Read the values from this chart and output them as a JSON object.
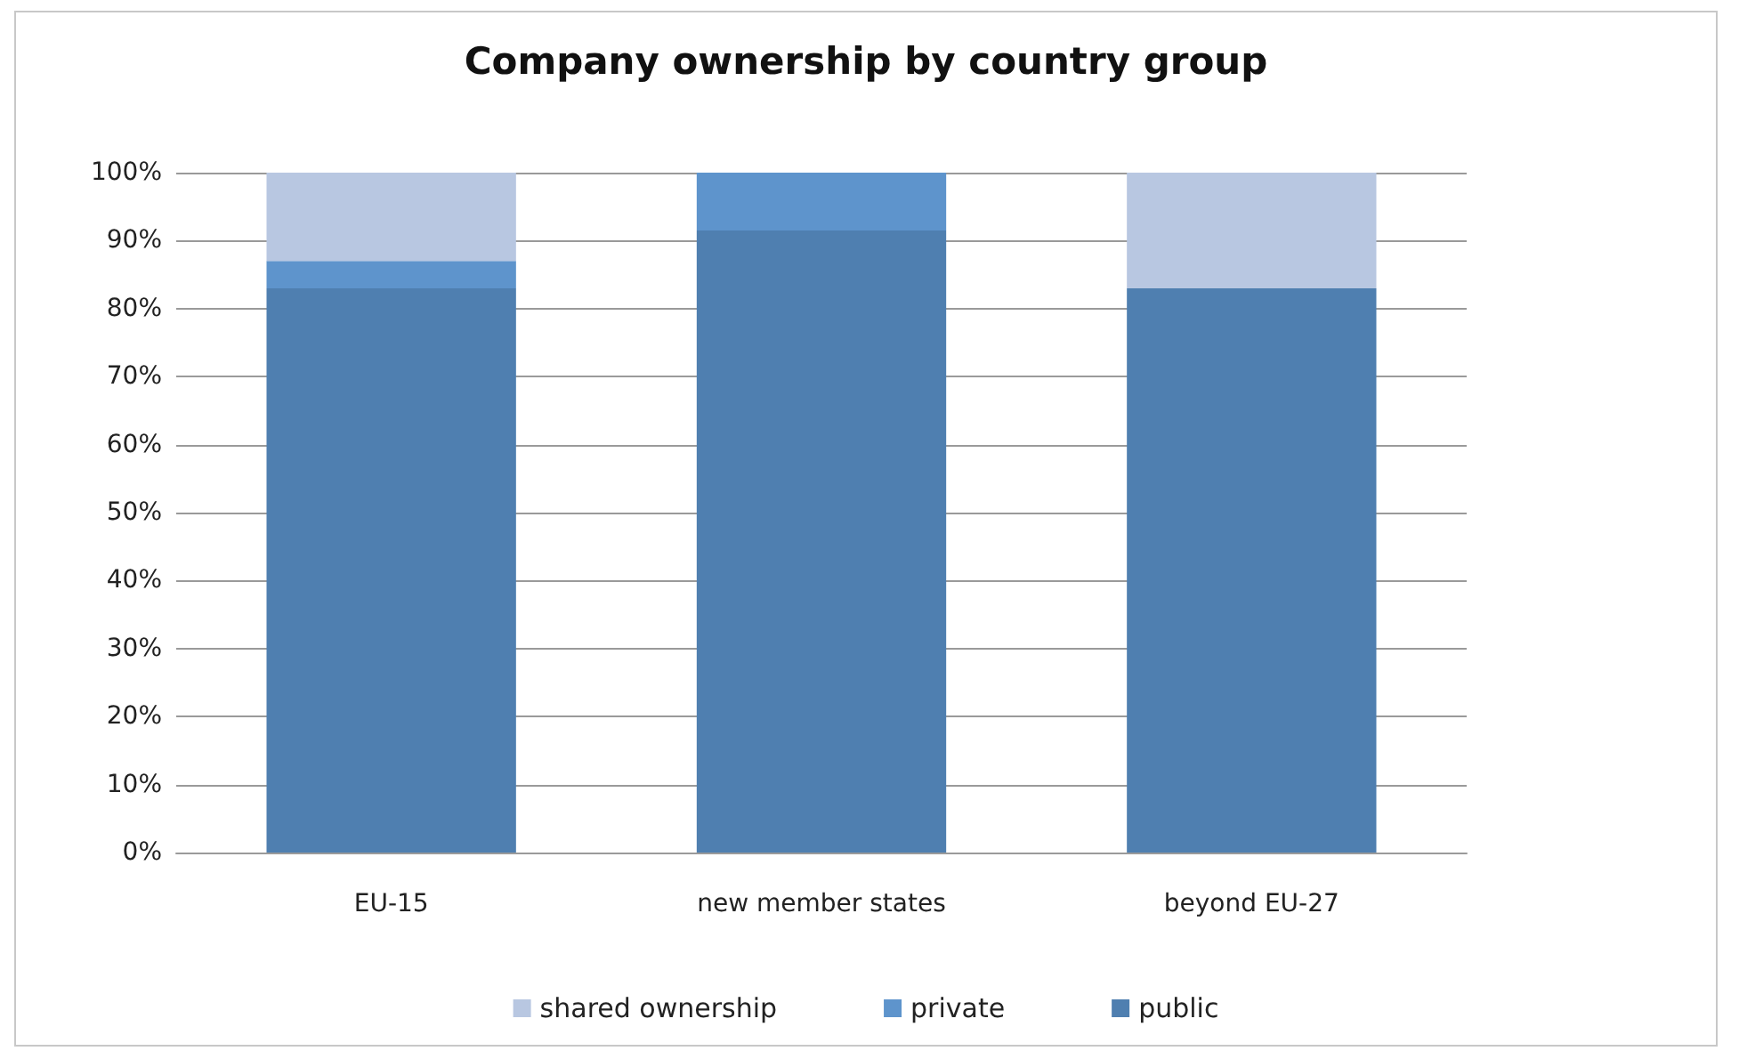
{
  "chart_data": {
    "type": "bar",
    "title": "Company ownership by country group",
    "categories": [
      "EU-15",
      "new member states",
      "beyond EU-27"
    ],
    "stacked": true,
    "series": [
      {
        "name": "public",
        "color": "#4f7fb0",
        "values": [
          83,
          91.5,
          83
        ]
      },
      {
        "name": "private",
        "color": "#5e94cc",
        "values": [
          4,
          8.5,
          0
        ]
      },
      {
        "name": "shared ownership",
        "color": "#b8c7e1",
        "values": [
          13,
          0,
          17
        ]
      }
    ],
    "ylim": [
      0,
      100
    ],
    "yticks": [
      {
        "value": 0,
        "label": "0%"
      },
      {
        "value": 10,
        "label": "10%"
      },
      {
        "value": 20,
        "label": "20%"
      },
      {
        "value": 30,
        "label": "30%"
      },
      {
        "value": 40,
        "label": "40%"
      },
      {
        "value": 50,
        "label": "50%"
      },
      {
        "value": 60,
        "label": "60%"
      },
      {
        "value": 70,
        "label": "70%"
      },
      {
        "value": 80,
        "label": "80%"
      },
      {
        "value": 90,
        "label": "90%"
      },
      {
        "value": 100,
        "label": "100%"
      }
    ],
    "grid": "y",
    "legend": "bottom"
  }
}
